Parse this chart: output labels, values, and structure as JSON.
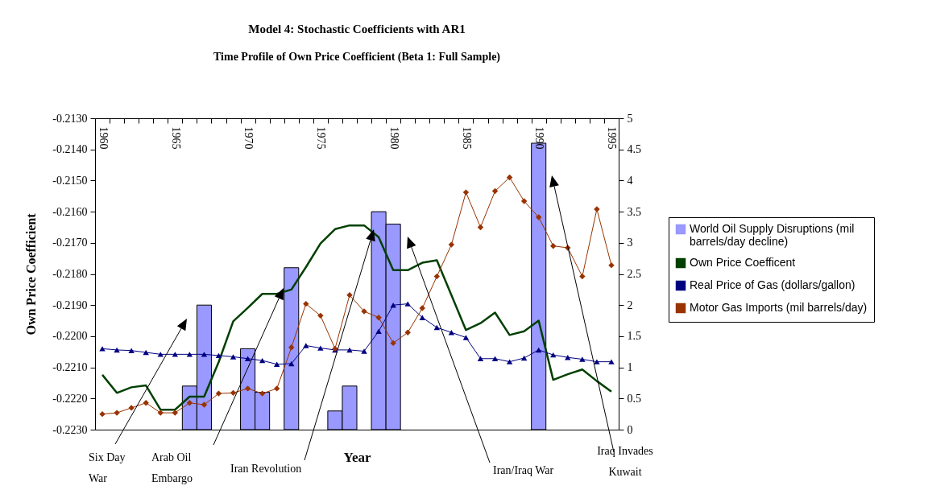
{
  "chart_data": {
    "type": "bar",
    "title": "Model 4: Stochastic Coefficients with AR1",
    "subtitle": "Time Profile of Own Price Coefficient (Beta 1: Full Sample)",
    "xlabel": "Year",
    "ylabel": "Own Price Coefficient",
    "categories": [
      "1960",
      null,
      null,
      null,
      null,
      "1965",
      null,
      null,
      null,
      null,
      "1970",
      null,
      null,
      null,
      null,
      "1975",
      null,
      null,
      null,
      null,
      "1980",
      null,
      null,
      null,
      null,
      "1985",
      null,
      null,
      null,
      null,
      "1990",
      null,
      null,
      null,
      null,
      "1995"
    ],
    "series": [
      {
        "name": "World Oil Supply Disruptions (mil barrels/day decline)",
        "axis": "y2",
        "color": "#9999ff",
        "values": [
          null,
          null,
          null,
          null,
          null,
          null,
          0.7,
          2.0,
          null,
          null,
          1.3,
          0.6,
          null,
          2.6,
          null,
          null,
          0.3,
          0.7,
          null,
          3.5,
          3.3,
          null,
          null,
          null,
          null,
          null,
          null,
          null,
          null,
          null,
          4.6,
          null,
          null,
          null,
          null,
          null
        ]
      },
      {
        "name": "Own Price Coefficent",
        "type": "line",
        "marker": "none",
        "color": "#004000",
        "values": [
          -0.22124,
          -0.22182,
          -0.22164,
          -0.22158,
          -0.22236,
          -0.22236,
          -0.22194,
          -0.22194,
          -0.22083,
          -0.21952,
          -0.21909,
          -0.21864,
          -0.21864,
          -0.2185,
          -0.21778,
          -0.21702,
          -0.21656,
          -0.21644,
          -0.21644,
          -0.21682,
          -0.21788,
          -0.21788,
          -0.21764,
          -0.21756,
          -0.21868,
          -0.2198,
          -0.21958,
          -0.21924,
          -0.21996,
          -0.21984,
          -0.2195,
          -0.2214,
          -0.22122,
          -0.22107,
          -0.22144,
          -0.22178
        ]
      },
      {
        "name": "Real Price of Gas (dollars/gallon)",
        "type": "line",
        "axis": "y2",
        "marker": "triangle",
        "color": "#000080",
        "values": [
          1.3,
          1.28,
          1.27,
          1.24,
          1.21,
          1.21,
          1.21,
          1.21,
          1.19,
          1.17,
          1.14,
          1.11,
          1.05,
          1.06,
          1.35,
          1.31,
          1.28,
          1.28,
          1.26,
          1.58,
          2.0,
          2.02,
          1.8,
          1.64,
          1.56,
          1.48,
          1.14,
          1.14,
          1.09,
          1.15,
          1.28,
          1.2,
          1.16,
          1.13,
          1.09,
          1.09
        ]
      },
      {
        "name": "Motor Gas Imports (mil barrels/day)",
        "type": "line",
        "axis": "y2",
        "marker": "diamond",
        "color": "#993300",
        "values": [
          0.25,
          0.27,
          0.35,
          0.43,
          0.27,
          0.27,
          0.43,
          0.4,
          0.58,
          0.59,
          0.66,
          0.58,
          0.66,
          1.32,
          2.02,
          1.83,
          1.3,
          2.16,
          1.9,
          1.8,
          1.39,
          1.56,
          1.95,
          2.46,
          2.97,
          3.81,
          3.25,
          3.83,
          4.05,
          3.67,
          3.41,
          2.95,
          2.92,
          2.46,
          3.54,
          2.64
        ]
      }
    ],
    "ylim": [
      -0.223,
      -0.213
    ],
    "yticks": [
      {
        "value": -0.223,
        "label": "-0.2230"
      },
      {
        "value": -0.222,
        "label": "-0.2220"
      },
      {
        "value": -0.221,
        "label": "-0.2210"
      },
      {
        "value": -0.22,
        "label": "-0.2200"
      },
      {
        "value": -0.219,
        "label": "-0.2190"
      },
      {
        "value": -0.218,
        "label": "-0.2180"
      },
      {
        "value": -0.217,
        "label": "-0.2170"
      },
      {
        "value": -0.216,
        "label": "-0.2160"
      },
      {
        "value": -0.215,
        "label": "-0.2150"
      },
      {
        "value": -0.214,
        "label": "-0.2140"
      },
      {
        "value": -0.213,
        "label": "-0.2130"
      }
    ],
    "y2lim": [
      0,
      5
    ],
    "y2ticks": [
      0,
      0.5,
      1,
      1.5,
      2,
      2.5,
      3,
      3.5,
      4,
      4.5,
      5
    ],
    "legend": "right",
    "annotations": [
      "Six Day War",
      "Arab Oil Embargo",
      "Iran Revolution",
      "Iran/Iraq War",
      "Iraq Invades Kuwait"
    ]
  }
}
